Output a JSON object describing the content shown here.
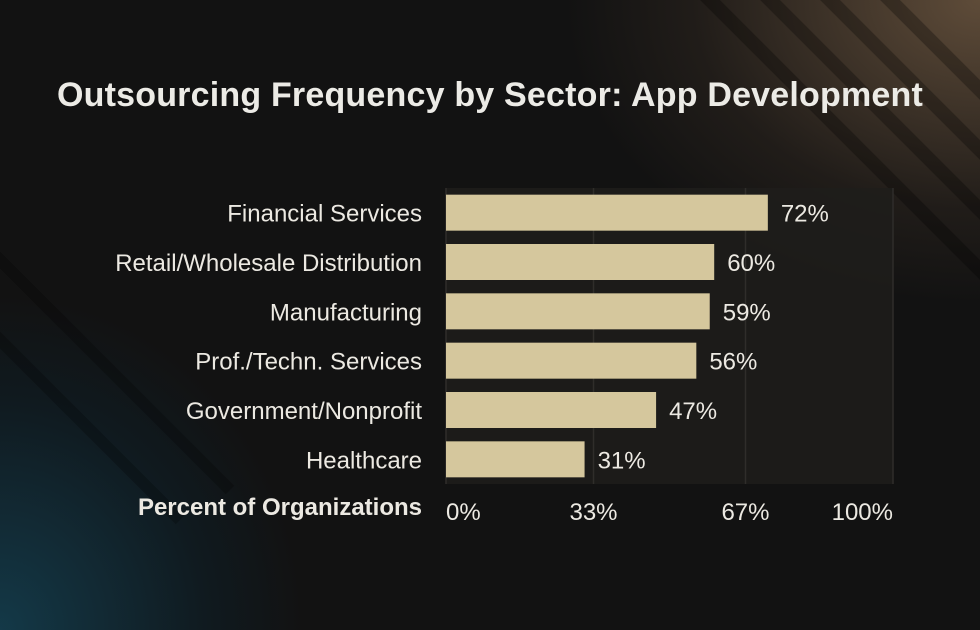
{
  "title": "Outsourcing Frequency by Sector: App Development",
  "colors": {
    "bar": "#d5c79d",
    "text": "#ece9e2",
    "plot_bg": "#1e1d1b",
    "grid": "#2f2d2a"
  },
  "chart_data": {
    "type": "bar",
    "orientation": "horizontal",
    "categories": [
      "Financial Services",
      "Retail/Wholesale Distribution",
      "Manufacturing",
      "Prof./Techn. Services",
      "Government/Nonprofit",
      "Healthcare"
    ],
    "values": [
      72,
      60,
      59,
      56,
      47,
      31
    ],
    "data_labels": [
      "72%",
      "60%",
      "59%",
      "56%",
      "47%",
      "31%"
    ],
    "xlabel": "Percent of Organizations",
    "xlim": [
      0,
      100
    ],
    "xticks": [
      0,
      33,
      67,
      100
    ],
    "xtick_labels": [
      "0%",
      "33%",
      "67%",
      "100%"
    ],
    "grid": true,
    "legend": "none"
  }
}
